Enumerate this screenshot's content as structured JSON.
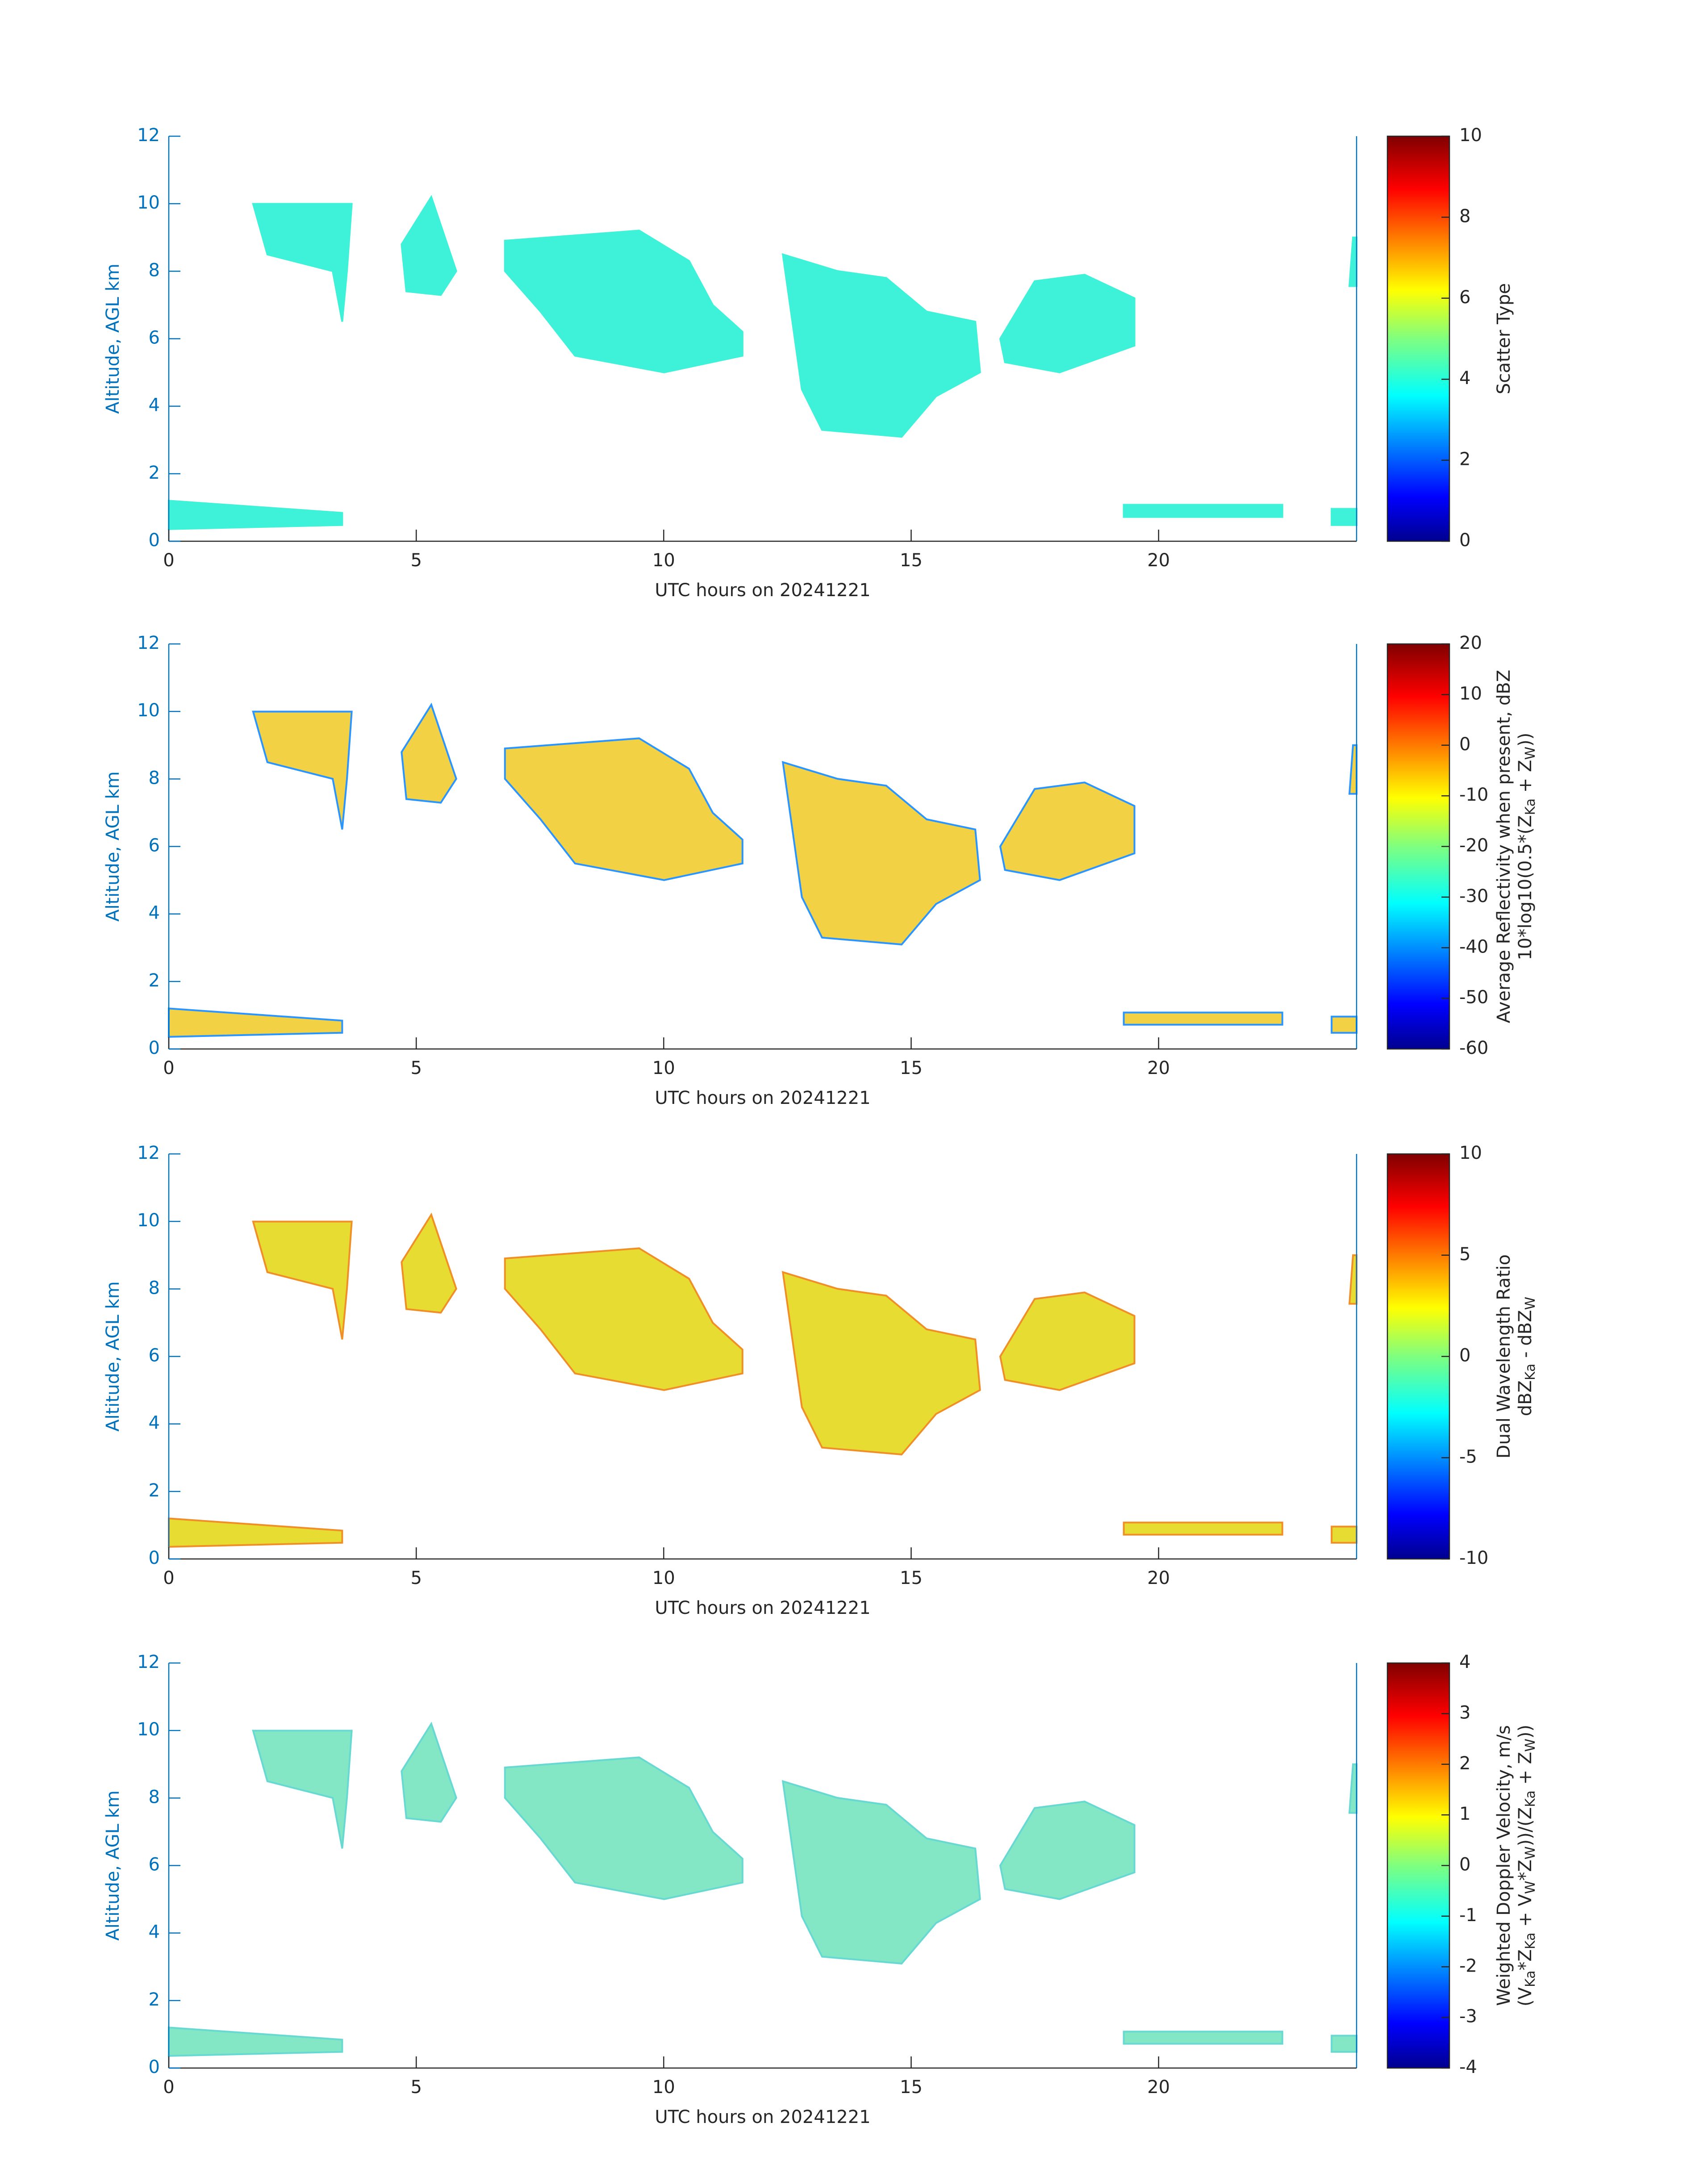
{
  "chart_data": [
    {
      "type": "time-height",
      "xlabel": "UTC hours on 20241221",
      "ylabel": "Altitude, AGL km",
      "xlim": [
        0,
        24
      ],
      "xticks": [
        0,
        5,
        10,
        15,
        20
      ],
      "ylim": [
        0,
        12
      ],
      "yticks": [
        0,
        2,
        4,
        6,
        8,
        10,
        12
      ],
      "color": "#33f2d6",
      "edge_color": "#33f2d6",
      "colorbar": {
        "clim": [
          0,
          10
        ],
        "ticks": [
          0,
          2,
          4,
          6,
          8,
          10
        ],
        "label": [
          [
            "Scatter Type"
          ]
        ]
      }
    },
    {
      "type": "time-height",
      "xlabel": "UTC hours on 20241221",
      "ylabel": "Altitude, AGL km",
      "xlim": [
        0,
        24
      ],
      "xticks": [
        0,
        5,
        10,
        15,
        20
      ],
      "ylim": [
        0,
        12
      ],
      "yticks": [
        0,
        2,
        4,
        6,
        8,
        10,
        12
      ],
      "color": "#f2cf3a",
      "edge_color": "#1f8fff",
      "colorbar": {
        "clim": [
          -60,
          20
        ],
        "ticks": [
          -60,
          -50,
          -40,
          -30,
          -20,
          -10,
          0,
          10,
          20
        ],
        "label": [
          [
            "Average Reflectivity when present, dBZ"
          ],
          [
            "10*log10(0.5*(Z",
            {
              "sub": "Ka"
            },
            " + Z",
            {
              "sub": "W"
            },
            "))"
          ]
        ]
      }
    },
    {
      "type": "time-height",
      "xlabel": "UTC hours on 20241221",
      "ylabel": "Altitude, AGL km",
      "xlim": [
        0,
        24
      ],
      "xticks": [
        0,
        5,
        10,
        15,
        20
      ],
      "ylim": [
        0,
        12
      ],
      "yticks": [
        0,
        2,
        4,
        6,
        8,
        10,
        12
      ],
      "color": "#e6dc28",
      "edge_color": "#f08a1c",
      "colorbar": {
        "clim": [
          -10,
          10
        ],
        "ticks": [
          -10,
          -5,
          0,
          5,
          10
        ],
        "label": [
          [
            "Dual Wavelength Ratio"
          ],
          [
            "dBZ",
            {
              "sub": "Ka"
            },
            " - dBZ",
            {
              "sub": "W"
            }
          ]
        ]
      }
    },
    {
      "type": "time-height",
      "xlabel": "UTC hours on 20241221",
      "ylabel": "Altitude, AGL km",
      "xlim": [
        0,
        24
      ],
      "xticks": [
        0,
        5,
        10,
        15,
        20
      ],
      "ylim": [
        0,
        12
      ],
      "yticks": [
        0,
        2,
        4,
        6,
        8,
        10,
        12
      ],
      "color": "#7de6c4",
      "edge_color": "#5fd8d0",
      "colorbar": {
        "clim": [
          -4,
          4
        ],
        "ticks": [
          -4,
          -3,
          -2,
          -1,
          0,
          1,
          2,
          3,
          4
        ],
        "label": [
          [
            "Weighted Doppler Velocity, m/s"
          ],
          [
            "(V",
            {
              "sub": "Ka"
            },
            "*Z",
            {
              "sub": "Ka"
            },
            " + V",
            {
              "sub": "W"
            },
            "*Z",
            {
              "sub": "W"
            },
            "))/(Z",
            {
              "sub": "Ka"
            },
            " + Z",
            {
              "sub": "W"
            },
            "))"
          ]
        ]
      }
    }
  ]
}
